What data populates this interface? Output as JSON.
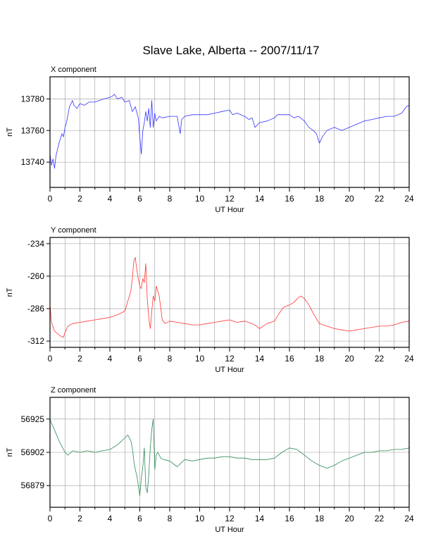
{
  "figure": {
    "title": "Slave Lake, Alberta -- 2007/11/17"
  },
  "chart_data": [
    {
      "type": "line",
      "title": "X component",
      "xlabel": "UT Hour",
      "ylabel": "nT",
      "xlim": [
        0,
        24
      ],
      "ylim": [
        13724,
        13794
      ],
      "xticks": [
        0,
        2,
        4,
        6,
        8,
        10,
        12,
        14,
        16,
        18,
        20,
        22,
        24
      ],
      "yticks": [
        13740,
        13760,
        13780
      ],
      "grid": true,
      "color": "#3333ff",
      "series": [
        {
          "x": [
            0,
            0.1,
            0.2,
            0.3,
            0.4,
            0.5,
            0.6,
            0.7,
            0.8,
            0.9,
            1.0,
            1.1,
            1.2,
            1.3,
            1.4,
            1.5,
            1.6,
            1.8,
            2.0,
            2.3,
            2.6,
            3.0,
            3.3,
            3.6,
            4.0,
            4.2,
            4.3,
            4.5,
            4.8,
            5.0,
            5.3,
            5.5,
            5.7,
            5.9,
            6.0,
            6.1,
            6.2,
            6.3,
            6.4,
            6.5,
            6.6,
            6.7,
            6.8,
            6.9,
            7.0,
            7.1,
            7.3,
            7.5,
            8.0,
            8.5,
            8.7,
            8.8,
            9.0,
            9.5,
            10.0,
            10.5,
            11.0,
            11.5,
            12.0,
            12.2,
            12.5,
            13.0,
            13.3,
            13.5,
            13.7,
            14.0,
            14.5,
            15.0,
            15.2,
            15.5,
            16.0,
            16.3,
            16.6,
            17.0,
            17.3,
            17.6,
            17.8,
            18.0,
            18.2,
            18.5,
            19.0,
            19.5,
            20.0,
            20.5,
            21.0,
            21.5,
            22.0,
            22.5,
            23.0,
            23.5,
            23.8,
            24.0
          ],
          "y": [
            13745,
            13738,
            13742,
            13736,
            13744,
            13748,
            13752,
            13755,
            13758,
            13756,
            13762,
            13765,
            13770,
            13775,
            13777,
            13779,
            13776,
            13774,
            13777,
            13776,
            13778,
            13778,
            13779,
            13780,
            13781,
            13782,
            13783,
            13780,
            13781,
            13778,
            13779,
            13772,
            13775,
            13768,
            13756,
            13745,
            13760,
            13765,
            13772,
            13766,
            13774,
            13762,
            13779,
            13762,
            13771,
            13766,
            13769,
            13768,
            13769,
            13769,
            13758,
            13767,
            13769,
            13770,
            13770,
            13770,
            13771,
            13772,
            13773,
            13770,
            13771,
            13769,
            13767,
            13768,
            13762,
            13765,
            13766,
            13768,
            13770,
            13770,
            13770,
            13768,
            13769,
            13766,
            13762,
            13760,
            13758,
            13752,
            13756,
            13760,
            13762,
            13760,
            13762,
            13764,
            13766,
            13767,
            13768,
            13769,
            13769,
            13771,
            13775,
            13776
          ]
        }
      ]
    },
    {
      "type": "line",
      "title": "Y component",
      "xlabel": "UT Hour",
      "ylabel": "nT",
      "xlim": [
        0,
        24
      ],
      "ylim": [
        -317,
        -229
      ],
      "xticks": [
        0,
        2,
        4,
        6,
        8,
        10,
        12,
        14,
        16,
        18,
        20,
        22,
        24
      ],
      "yticks": [
        -234,
        -260,
        -286,
        -312
      ],
      "grid": true,
      "color": "#ff3333",
      "series": [
        {
          "x": [
            0,
            0.1,
            0.3,
            0.5,
            0.7,
            0.9,
            1.0,
            1.2,
            1.5,
            2.0,
            2.5,
            3.0,
            3.5,
            4.0,
            4.5,
            5.0,
            5.2,
            5.4,
            5.5,
            5.6,
            5.7,
            5.8,
            5.9,
            6.0,
            6.1,
            6.2,
            6.3,
            6.4,
            6.5,
            6.6,
            6.7,
            6.8,
            6.9,
            7.0,
            7.1,
            7.2,
            7.3,
            7.5,
            7.7,
            8.0,
            8.5,
            9.0,
            9.5,
            10.0,
            10.5,
            11.0,
            11.5,
            12.0,
            12.5,
            13.0,
            13.5,
            13.8,
            14.0,
            14.5,
            15.0,
            15.3,
            15.6,
            16.0,
            16.3,
            16.6,
            16.8,
            17.0,
            17.3,
            17.6,
            18.0,
            18.5,
            19.0,
            19.5,
            20.0,
            20.5,
            21.0,
            21.5,
            22.0,
            22.5,
            23.0,
            23.5,
            24.0
          ],
          "y": [
            -283,
            -297,
            -304,
            -306,
            -308,
            -309,
            -305,
            -300,
            -298,
            -297,
            -296,
            -295,
            -294,
            -293,
            -291,
            -288,
            -280,
            -272,
            -262,
            -248,
            -245,
            -255,
            -262,
            -268,
            -270,
            -262,
            -265,
            -250,
            -278,
            -293,
            -302,
            -288,
            -276,
            -280,
            -268,
            -272,
            -276,
            -295,
            -298,
            -296,
            -297,
            -298,
            -299,
            -299,
            -298,
            -297,
            -296,
            -295,
            -297,
            -296,
            -298,
            -300,
            -302,
            -298,
            -296,
            -290,
            -285,
            -283,
            -281,
            -277,
            -276,
            -278,
            -283,
            -290,
            -298,
            -300,
            -302,
            -303,
            -304,
            -303,
            -302,
            -301,
            -300,
            -300,
            -299,
            -297,
            -296
          ]
        }
      ]
    },
    {
      "type": "line",
      "title": "Z component",
      "xlabel": "UT Hour",
      "ylabel": "nT",
      "xlim": [
        0,
        24
      ],
      "ylim": [
        56864,
        56940
      ],
      "xticks": [
        0,
        2,
        4,
        6,
        8,
        10,
        12,
        14,
        16,
        18,
        20,
        22,
        24
      ],
      "yticks": [
        56879,
        56902,
        56925
      ],
      "grid": true,
      "color": "#2e8b57",
      "series": [
        {
          "x": [
            0,
            0.1,
            0.2,
            0.4,
            0.6,
            0.8,
            1.0,
            1.2,
            1.5,
            2.0,
            2.5,
            3.0,
            3.5,
            4.0,
            4.5,
            5.0,
            5.2,
            5.4,
            5.5,
            5.6,
            5.7,
            5.8,
            5.9,
            6.0,
            6.1,
            6.2,
            6.3,
            6.4,
            6.5,
            6.6,
            6.7,
            6.8,
            6.9,
            7.0,
            7.1,
            7.2,
            7.4,
            7.6,
            8.0,
            8.5,
            9.0,
            9.5,
            10.0,
            10.5,
            11.0,
            11.5,
            12.0,
            12.5,
            13.0,
            13.5,
            14.0,
            14.5,
            15.0,
            15.5,
            16.0,
            16.5,
            17.0,
            17.5,
            18.0,
            18.5,
            19.0,
            19.5,
            20.0,
            20.5,
            21.0,
            21.5,
            22.0,
            22.5,
            23.0,
            23.5,
            24.0
          ],
          "y": [
            56925,
            56922,
            56920,
            56915,
            56910,
            56906,
            56902,
            56900,
            56903,
            56902,
            56903,
            56902,
            56903,
            56904,
            56907,
            56912,
            56914,
            56910,
            56905,
            56896,
            56890,
            56886,
            56879,
            56872,
            56884,
            56892,
            56905,
            56878,
            56874,
            56886,
            56905,
            56918,
            56925,
            56890,
            56900,
            56902,
            56898,
            56897,
            56896,
            56892,
            56897,
            56896,
            56897,
            56898,
            56898,
            56899,
            56899,
            56898,
            56898,
            56897,
            56897,
            56897,
            56898,
            56902,
            56905,
            56904,
            56900,
            56896,
            56893,
            56891,
            56893,
            56896,
            56898,
            56900,
            56902,
            56902,
            56903,
            56903,
            56904,
            56904,
            56905
          ]
        }
      ]
    }
  ]
}
